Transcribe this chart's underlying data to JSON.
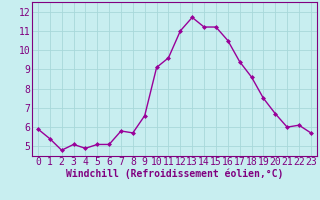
{
  "x": [
    0,
    1,
    2,
    3,
    4,
    5,
    6,
    7,
    8,
    9,
    10,
    11,
    12,
    13,
    14,
    15,
    16,
    17,
    18,
    19,
    20,
    21,
    22,
    23
  ],
  "y": [
    5.9,
    5.4,
    4.8,
    5.1,
    4.9,
    5.1,
    5.1,
    5.8,
    5.7,
    6.6,
    9.1,
    9.6,
    11.0,
    11.7,
    11.2,
    11.2,
    10.5,
    9.4,
    8.6,
    7.5,
    6.7,
    6.0,
    6.1,
    5.7
  ],
  "line_color": "#990099",
  "marker": "D",
  "marker_size": 2,
  "background_color": "#c8eef0",
  "grid_color": "#a8d8da",
  "xlabel": "Windchill (Refroidissement éolien,°C)",
  "xlim": [
    -0.5,
    23.5
  ],
  "ylim": [
    4.5,
    12.5
  ],
  "yticks": [
    5,
    6,
    7,
    8,
    9,
    10,
    11,
    12
  ],
  "xticks": [
    0,
    1,
    2,
    3,
    4,
    5,
    6,
    7,
    8,
    9,
    10,
    11,
    12,
    13,
    14,
    15,
    16,
    17,
    18,
    19,
    20,
    21,
    22,
    23
  ],
  "font_color": "#800080",
  "font_size": 7,
  "xlabel_fontsize": 7,
  "spine_color": "#800080",
  "linewidth": 1.0
}
